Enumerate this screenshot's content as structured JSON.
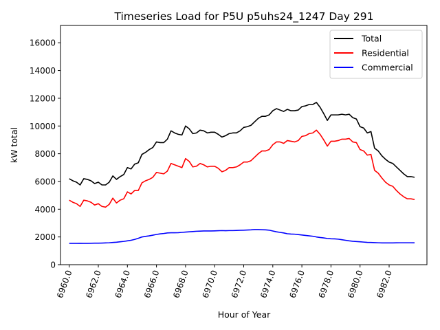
{
  "chart_data": {
    "type": "line",
    "title": "Timeseries Load for P5U p5uhs24_1247  Day 291",
    "xlabel": "Hour of Year",
    "ylabel": "kW total",
    "xlim": [
      6959.4,
      6984.6
    ],
    "ylim": [
      0,
      17250
    ],
    "xticks": [
      6960,
      6962,
      6964,
      6966,
      6968,
      6970,
      6972,
      6974,
      6976,
      6978,
      6980,
      6982
    ],
    "xtick_labels": [
      "6960.0",
      "6962.0",
      "6964.0",
      "6966.0",
      "6968.0",
      "6970.0",
      "6972.0",
      "6974.0",
      "6976.0",
      "6978.0",
      "6980.0",
      "6982.0"
    ],
    "yticks": [
      0,
      2000,
      4000,
      6000,
      8000,
      10000,
      12000,
      14000,
      16000
    ],
    "ytick_labels": [
      "0",
      "2000",
      "4000",
      "6000",
      "8000",
      "10000",
      "12000",
      "14000",
      "16000"
    ],
    "legend_position": "top-right",
    "grid": false,
    "x": [
      6960.0,
      6960.25,
      6960.5,
      6960.75,
      6961.0,
      6961.25,
      6961.5,
      6961.75,
      6962.0,
      6962.25,
      6962.5,
      6962.75,
      6963.0,
      6963.25,
      6963.5,
      6963.75,
      6964.0,
      6964.25,
      6964.5,
      6964.75,
      6965.0,
      6965.25,
      6965.5,
      6965.75,
      6966.0,
      6966.25,
      6966.5,
      6966.75,
      6967.0,
      6967.25,
      6967.5,
      6967.75,
      6968.0,
      6968.25,
      6968.5,
      6968.75,
      6969.0,
      6969.25,
      6969.5,
      6969.75,
      6970.0,
      6970.25,
      6970.5,
      6970.75,
      6971.0,
      6971.25,
      6971.5,
      6971.75,
      6972.0,
      6972.25,
      6972.5,
      6972.75,
      6973.0,
      6973.25,
      6973.5,
      6973.75,
      6974.0,
      6974.25,
      6974.5,
      6974.75,
      6975.0,
      6975.25,
      6975.5,
      6975.75,
      6976.0,
      6976.25,
      6976.5,
      6976.75,
      6977.0,
      6977.25,
      6977.5,
      6977.75,
      6978.0,
      6978.25,
      6978.5,
      6978.75,
      6979.0,
      6979.25,
      6979.5,
      6979.75,
      6980.0,
      6980.25,
      6980.5,
      6980.75,
      6981.0,
      6981.25,
      6981.5,
      6981.75,
      6982.0,
      6982.25,
      6982.5,
      6982.75,
      6983.0,
      6983.25,
      6983.5,
      6983.75
    ],
    "series": [
      {
        "name": "Total",
        "color": "#000000",
        "values": [
          6200,
          6050,
          5950,
          5750,
          6200,
          6150,
          6050,
          5850,
          5950,
          5750,
          5750,
          5950,
          6400,
          6150,
          6350,
          6500,
          7000,
          6900,
          7250,
          7350,
          7950,
          8100,
          8300,
          8450,
          8850,
          8800,
          8800,
          9050,
          9650,
          9500,
          9400,
          9350,
          10000,
          9800,
          9450,
          9500,
          9700,
          9650,
          9500,
          9550,
          9550,
          9400,
          9200,
          9300,
          9450,
          9500,
          9500,
          9650,
          9900,
          9950,
          10050,
          10300,
          10550,
          10700,
          10700,
          10800,
          11100,
          11250,
          11150,
          11050,
          11200,
          11100,
          11100,
          11150,
          11400,
          11450,
          11550,
          11550,
          11700,
          11350,
          10900,
          10400,
          10800,
          10800,
          10800,
          10850,
          10800,
          10850,
          10600,
          10500,
          9950,
          9850,
          9500,
          9600,
          8400,
          8200,
          7850,
          7600,
          7400,
          7300,
          7050,
          6800,
          6550,
          6350,
          6350,
          6300
        ]
      },
      {
        "name": "Residential",
        "color": "#ff0000",
        "values": [
          4650,
          4500,
          4400,
          4200,
          4650,
          4600,
          4500,
          4300,
          4400,
          4200,
          4150,
          4350,
          4800,
          4450,
          4650,
          4750,
          5250,
          5100,
          5350,
          5350,
          5900,
          6050,
          6150,
          6300,
          6650,
          6600,
          6550,
          6750,
          7300,
          7200,
          7100,
          7000,
          7650,
          7450,
          7050,
          7100,
          7300,
          7200,
          7050,
          7100,
          7100,
          6950,
          6700,
          6800,
          7000,
          7000,
          7050,
          7200,
          7400,
          7400,
          7500,
          7750,
          8000,
          8200,
          8200,
          8300,
          8650,
          8850,
          8850,
          8750,
          8950,
          8900,
          8850,
          8950,
          9250,
          9300,
          9450,
          9500,
          9700,
          9400,
          9000,
          8550,
          8900,
          8900,
          8950,
          9050,
          9050,
          9100,
          8850,
          8800,
          8300,
          8200,
          7900,
          7950,
          6800,
          6600,
          6250,
          5950,
          5750,
          5650,
          5350,
          5100,
          4900,
          4750,
          4750,
          4700
        ]
      },
      {
        "name": "Commercial",
        "color": "#0000ff",
        "values": [
          1540,
          1540,
          1540,
          1545,
          1540,
          1540,
          1545,
          1550,
          1550,
          1560,
          1570,
          1580,
          1600,
          1620,
          1650,
          1680,
          1720,
          1760,
          1820,
          1900,
          2000,
          2040,
          2080,
          2130,
          2180,
          2220,
          2250,
          2290,
          2300,
          2300,
          2310,
          2330,
          2350,
          2370,
          2390,
          2410,
          2420,
          2430,
          2430,
          2430,
          2440,
          2450,
          2460,
          2450,
          2460,
          2460,
          2470,
          2480,
          2490,
          2500,
          2510,
          2530,
          2530,
          2520,
          2510,
          2490,
          2430,
          2370,
          2330,
          2290,
          2230,
          2210,
          2200,
          2170,
          2140,
          2110,
          2080,
          2050,
          2000,
          1960,
          1930,
          1890,
          1870,
          1860,
          1840,
          1800,
          1760,
          1720,
          1690,
          1670,
          1650,
          1630,
          1610,
          1600,
          1590,
          1580,
          1570,
          1570,
          1570,
          1570,
          1575,
          1580,
          1580,
          1580,
          1580,
          1575
        ]
      }
    ]
  }
}
